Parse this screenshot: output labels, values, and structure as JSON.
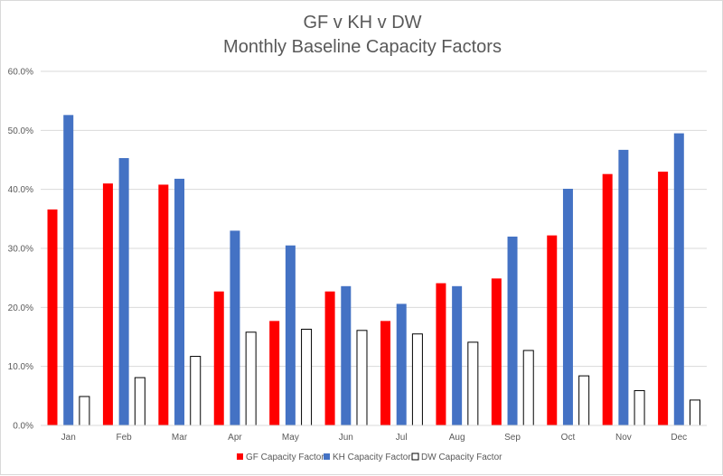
{
  "chart_data": {
    "type": "bar",
    "title": [
      "GF v KH v DW",
      "Monthly Baseline Capacity Factors"
    ],
    "xlabel": "",
    "ylabel": "",
    "categories": [
      "Jan",
      "Feb",
      "Mar",
      "Apr",
      "May",
      "Jun",
      "Jul",
      "Aug",
      "Sep",
      "Oct",
      "Nov",
      "Dec"
    ],
    "ylim": [
      0,
      60
    ],
    "yticks": [
      0,
      10,
      20,
      30,
      40,
      50,
      60
    ],
    "ytick_labels": [
      "0.0%",
      "10.0%",
      "20.0%",
      "30.0%",
      "40.0%",
      "50.0%",
      "60.0%"
    ],
    "grid": true,
    "legend_position": "bottom",
    "series": [
      {
        "name": "GF Capacity Factor",
        "color": "#ff0000",
        "values": [
          36.6,
          41.0,
          40.8,
          22.7,
          17.7,
          22.7,
          17.7,
          24.1,
          24.9,
          32.2,
          42.6,
          43.0
        ]
      },
      {
        "name": "KH Capacity Factor",
        "color": "#4472c4",
        "values": [
          52.6,
          45.3,
          41.8,
          33.0,
          30.5,
          23.6,
          20.6,
          23.6,
          32.0,
          40.1,
          46.7,
          49.5
        ]
      },
      {
        "name": "DW Capacity Factor",
        "color": "#ffffff",
        "values": [
          4.9,
          8.1,
          11.7,
          15.8,
          16.3,
          16.1,
          15.5,
          14.1,
          12.7,
          8.4,
          5.9,
          4.3
        ]
      }
    ]
  }
}
